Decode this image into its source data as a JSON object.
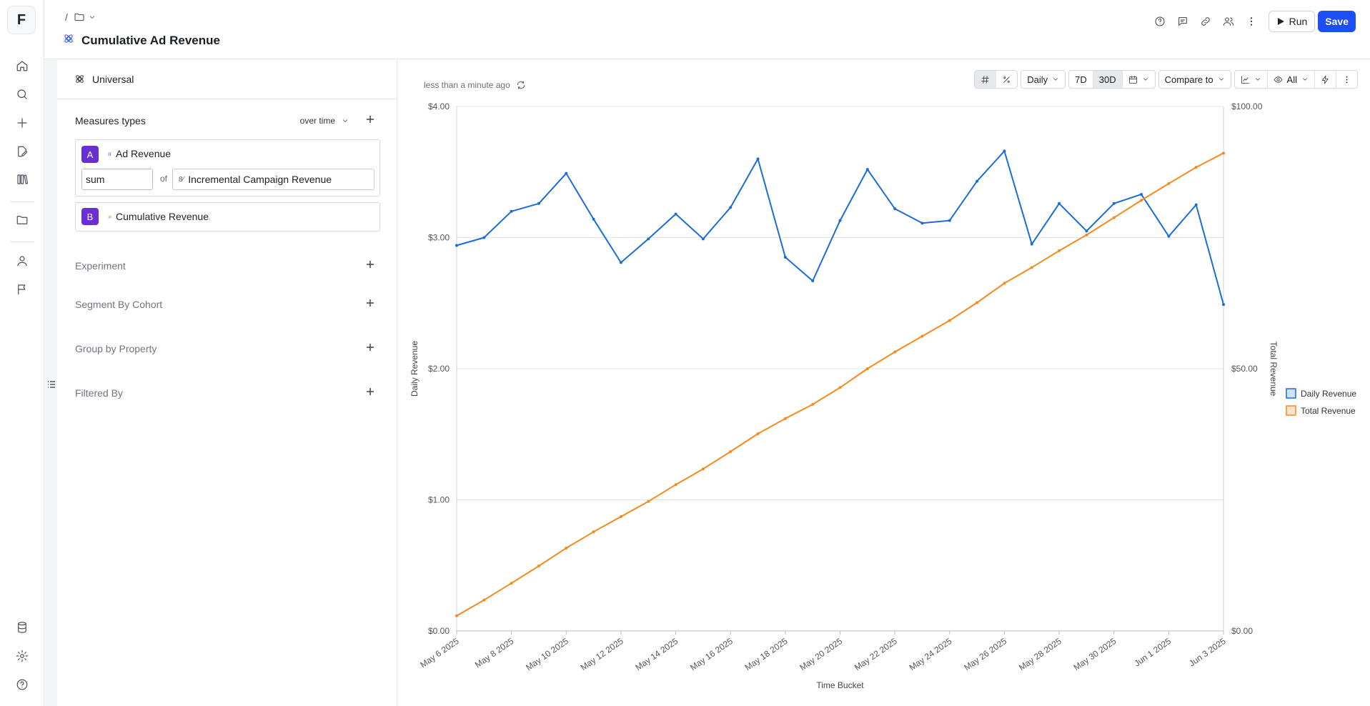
{
  "app": {
    "logo_letter": "F"
  },
  "nav": {
    "items": [
      "home-icon",
      "search-icon",
      "plus-icon",
      "edit-icon",
      "library-icon",
      "folder-icon",
      "user-icon",
      "flag-icon"
    ],
    "bottom": [
      "database-icon",
      "settings-icon",
      "help-icon"
    ]
  },
  "header": {
    "breadcrumb_sep": "/",
    "title": "Cumulative Ad Revenue",
    "run_label": "Run",
    "save_label": "Save"
  },
  "panel": {
    "source_label": "Universal",
    "measures_title": "Measures types",
    "over_time_label": "over time",
    "measures": [
      {
        "letter": "A",
        "type_icon": "events-icon",
        "label": "Ad Revenue",
        "aggregation": "sum",
        "of_label": "of",
        "property": "Incremental Campaign Revenue"
      },
      {
        "letter": "B",
        "type_icon": "formula-icon",
        "label": "Cumulative Revenue"
      }
    ],
    "sections": [
      "Experiment",
      "Segment By Cohort",
      "Group by Property",
      "Filtered By"
    ]
  },
  "chart_toolbar": {
    "updated_text": "less than a minute ago",
    "granularity": "Daily",
    "range_7d": "7D",
    "range_30d": "30D",
    "compare_label": "Compare to",
    "visibility_label": "All"
  },
  "colors": {
    "daily": "#1a6dd6",
    "total": "#f58a1f",
    "accent": "#1d4ef5",
    "badge": "#6a2fd1"
  },
  "chart_data": {
    "type": "line",
    "xlabel": "Time Bucket",
    "ylabel_left": "Daily Revenue",
    "ylabel_right": "Total Revenue",
    "x": [
      "May 6 2025",
      "May 7 2025",
      "May 8 2025",
      "May 9 2025",
      "May 10 2025",
      "May 11 2025",
      "May 12 2025",
      "May 13 2025",
      "May 14 2025",
      "May 15 2025",
      "May 16 2025",
      "May 17 2025",
      "May 18 2025",
      "May 19 2025",
      "May 20 2025",
      "May 21 2025",
      "May 22 2025",
      "May 23 2025",
      "May 24 2025",
      "May 25 2025",
      "May 26 2025",
      "May 27 2025",
      "May 28 2025",
      "May 29 2025",
      "May 30 2025",
      "May 31 2025",
      "Jun 1 2025",
      "Jun 2 2025",
      "Jun 3 2025"
    ],
    "x_tick_labels": [
      "May 6 2025",
      "May 8 2025",
      "May 10 2025",
      "May 12 2025",
      "May 14 2025",
      "May 16 2025",
      "May 18 2025",
      "May 20 2025",
      "May 22 2025",
      "May 24 2025",
      "May 26 2025",
      "May 28 2025",
      "May 30 2025",
      "Jun 1 2025",
      "Jun 3 2025"
    ],
    "left_axis": {
      "ylim": [
        0,
        4
      ],
      "ticks": [
        "$0.00",
        "$1.00",
        "$2.00",
        "$3.00",
        "$4.00"
      ]
    },
    "right_axis": {
      "ylim": [
        0,
        100
      ],
      "ticks": [
        "$0.00",
        "$50.00",
        "$100.00"
      ]
    },
    "grid": true,
    "legend_position": "right",
    "series": [
      {
        "name": "Daily Revenue",
        "axis": "left",
        "values": [
          2.94,
          3.0,
          3.2,
          3.26,
          3.49,
          3.14,
          2.81,
          2.99,
          3.18,
          2.99,
          3.23,
          3.6,
          2.85,
          2.67,
          3.13,
          3.52,
          3.22,
          3.11,
          3.13,
          3.43,
          3.66,
          2.95,
          3.26,
          3.05,
          3.26,
          3.33,
          3.01,
          3.25,
          2.49
        ]
      },
      {
        "name": "Total Revenue",
        "axis": "right",
        "values": [
          2.9,
          5.9,
          9.1,
          12.4,
          15.8,
          18.9,
          21.8,
          24.7,
          27.9,
          30.9,
          34.2,
          37.6,
          40.5,
          43.2,
          46.4,
          50.0,
          53.2,
          56.2,
          59.2,
          62.6,
          66.3,
          69.3,
          72.5,
          75.5,
          78.8,
          82.1,
          85.3,
          88.4,
          91.1
        ]
      }
    ]
  }
}
